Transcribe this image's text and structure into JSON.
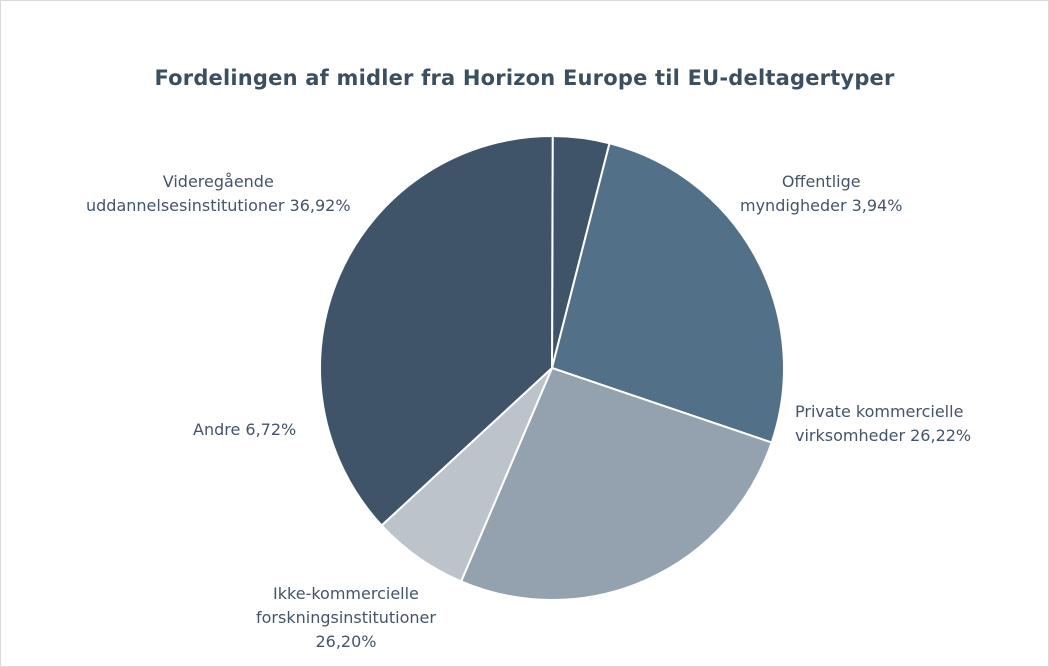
{
  "chart_data": {
    "type": "pie",
    "title": "Fordelingen af midler fra Horizon Europe til EU-deltagertyper",
    "slices": [
      {
        "name": "Offentlige myndigheder",
        "value": 3.94,
        "label_lines": [
          "Offentlige",
          "myndigheder 3,94%"
        ],
        "color": "#3f5468"
      },
      {
        "name": "Private kommercielle virksomheder",
        "value": 26.22,
        "label_lines": [
          "Private kommercielle",
          "virksomheder 26,22%"
        ],
        "color": "#527189"
      },
      {
        "name": "Ikke-kommercielle forskningsinstitutioner",
        "value": 26.2,
        "label_lines": [
          "Ikke-kommercielle",
          "forskningsinstitutioner",
          "26,20%"
        ],
        "color": "#94a2af"
      },
      {
        "name": "Andre",
        "value": 6.72,
        "label_lines": [
          "Andre 6,72%"
        ],
        "color": "#bdc3cb"
      },
      {
        "name": "Videregående uddannelsesinstitutioner",
        "value": 36.92,
        "label_lines": [
          "Videregående",
          "uddannelsesinstitutioner 36,92%"
        ],
        "color": "#3f5468"
      }
    ]
  }
}
